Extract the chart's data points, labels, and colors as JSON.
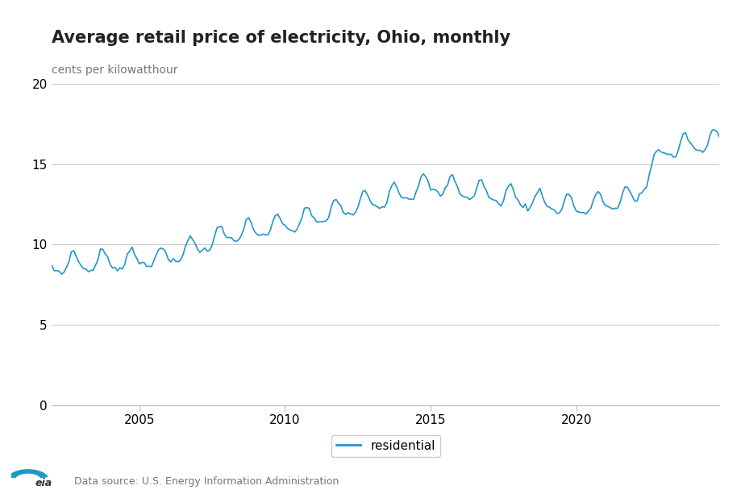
{
  "title": "Average retail price of electricity, Ohio, monthly",
  "ylabel": "cents per kilowatthour",
  "line_color": "#2196C9",
  "line_width": 1.2,
  "legend_label": "residential",
  "source_text": "Data source: U.S. Energy Information Administration",
  "ylim": [
    0,
    20
  ],
  "yticks": [
    0,
    5,
    10,
    15,
    20
  ],
  "xticks": [
    2005,
    2010,
    2015,
    2020
  ],
  "bg_color": "#ffffff",
  "grid_color": "#cccccc",
  "title_fontsize": 15,
  "label_fontsize": 10,
  "tick_fontsize": 11
}
